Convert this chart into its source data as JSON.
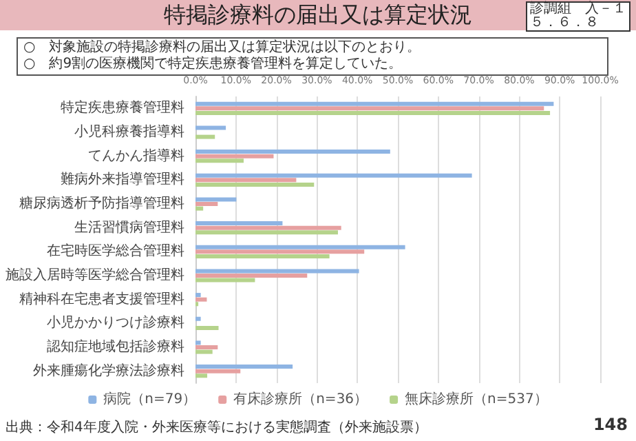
{
  "chart_data": {
    "type": "bar",
    "orientation": "horizontal",
    "title": "特掲診療料の届出又は算定状況",
    "annotations": [
      "診調組　入－１",
      "５．６．８",
      "○　対象施設の特掲診療料の届出又は算定状況は以下のとおり。",
      "○　約9割の医療機関で特定疾患療養管理料を算定していた。",
      "出典：令和4年度入院・外来医療等における実態調査（外来施設票）",
      "148"
    ],
    "categories": [
      "特定疾患療養管理料",
      "小児科療養指導料",
      "てんかん指導料",
      "難病外来指導管理料",
      "糖尿病透析予防指導管理料",
      "生活習慣病管理料",
      "在宅時医学総合管理料",
      "施設入居時等医学総合管理料",
      "精神科在宅患者支援管理料",
      "小児かかりつけ診療料",
      "認知症地域包括診療料",
      "外来腫瘍化学療法診療料"
    ],
    "series": [
      {
        "name": "病院（n=79）",
        "color": "#8eb4e3",
        "values": [
          88.5,
          7.5,
          48.1,
          68.3,
          10.1,
          21.5,
          51.8,
          40.4,
          1.3,
          1.3,
          1.3,
          24.0
        ]
      },
      {
        "name": "有床診療所（n=36）",
        "color": "#e6a0a0",
        "values": [
          86.1,
          0,
          19.3,
          24.9,
          5.5,
          36.0,
          41.7,
          27.6,
          2.8,
          0,
          5.5,
          11.1
        ]
      },
      {
        "name": "無床診療所（n=537）",
        "color": "#b5d38b",
        "values": [
          87.6,
          4.8,
          11.9,
          29.3,
          1.9,
          35.2,
          33.1,
          14.7,
          0.7,
          5.7,
          4.2,
          2.9
        ]
      }
    ],
    "xlim": [
      0,
      100
    ],
    "xticks": [
      {
        "value": 0,
        "label": "0.0%"
      },
      {
        "value": 10,
        "label": "10.0%"
      },
      {
        "value": 20,
        "label": "20.0%"
      },
      {
        "value": 30,
        "label": "30.0%"
      },
      {
        "value": 40,
        "label": "40.0%"
      },
      {
        "value": 50,
        "label": "50.0%"
      },
      {
        "value": 60,
        "label": "60.0%"
      },
      {
        "value": 70,
        "label": "70.0%"
      },
      {
        "value": 80,
        "label": "80.0%"
      },
      {
        "value": 90,
        "label": "90.0%"
      },
      {
        "value": 100,
        "label": "100.0%"
      }
    ],
    "grid": "x",
    "legend": "bottom"
  }
}
